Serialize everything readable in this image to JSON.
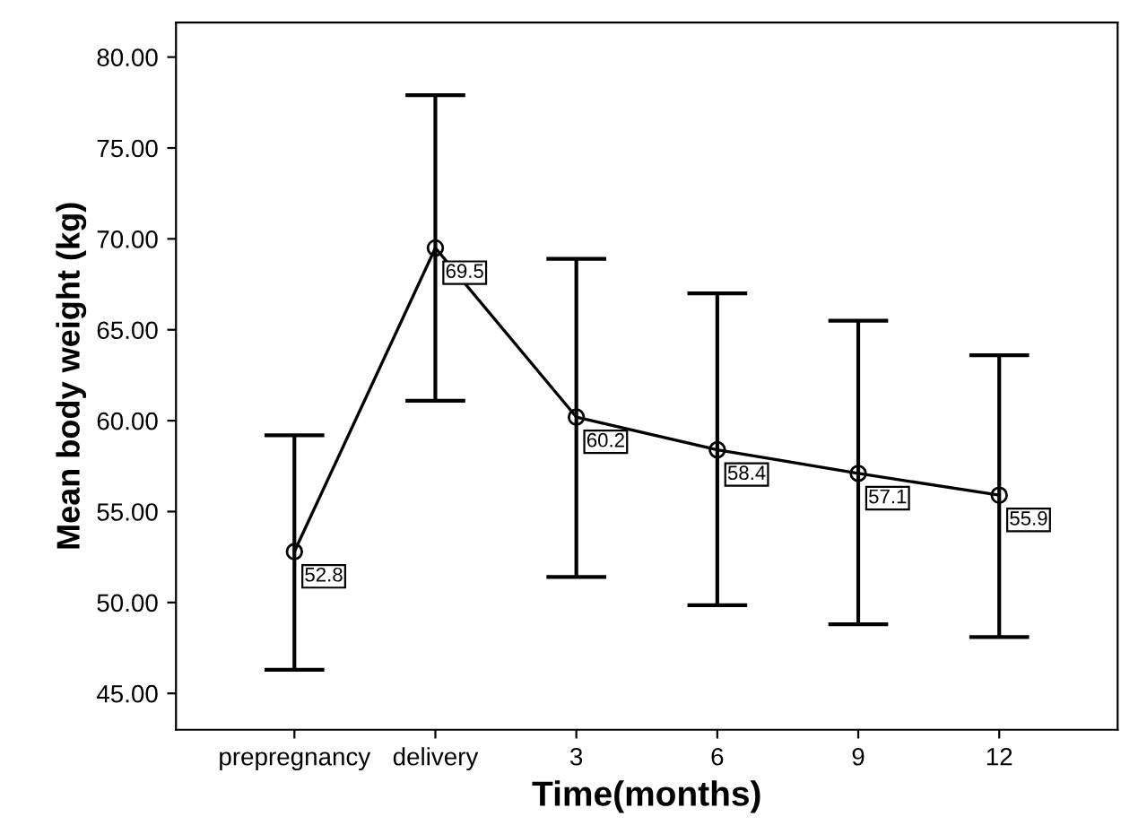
{
  "chart_data": {
    "type": "line",
    "xlabel": "Time(months)",
    "ylabel": "Mean body weight (kg)",
    "categories": [
      "prepregnancy",
      "delivery",
      "3",
      "6",
      "9",
      "12"
    ],
    "values": [
      52.8,
      69.5,
      60.2,
      58.4,
      57.1,
      55.9
    ],
    "errors": [
      [
        46.3,
        59.2
      ],
      [
        61.1,
        77.9
      ],
      [
        51.4,
        68.9
      ],
      [
        49.85,
        67.0
      ],
      [
        48.8,
        65.5
      ],
      [
        48.1,
        63.6
      ]
    ],
    "color": "#000000",
    "marker": "circle",
    "line_style": "solid",
    "data_labels": true,
    "grid": false,
    "legend": false,
    "ylim": [
      43.0,
      81.9
    ],
    "yticks": [
      {
        "value": 45,
        "label": "45.00"
      },
      {
        "value": 50,
        "label": "50.00"
      },
      {
        "value": 55,
        "label": "55.00"
      },
      {
        "value": 60,
        "label": "60.00"
      },
      {
        "value": 65,
        "label": "65.00"
      },
      {
        "value": 70,
        "label": "70.00"
      },
      {
        "value": 75,
        "label": "75.00"
      },
      {
        "value": 80,
        "label": "80.00"
      }
    ]
  }
}
